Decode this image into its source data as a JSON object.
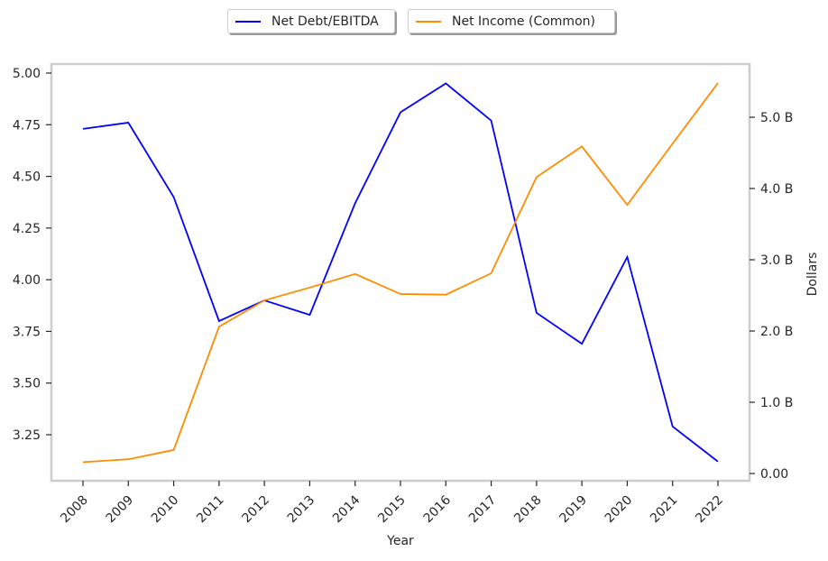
{
  "chart_data": {
    "type": "line",
    "x": [
      2008,
      2009,
      2010,
      2011,
      2012,
      2013,
      2014,
      2015,
      2016,
      2017,
      2018,
      2019,
      2020,
      2021,
      2022
    ],
    "xlabel": "Year",
    "series": [
      {
        "name": "Net Debt/EBITDA",
        "axis": "left",
        "color": "#0000ff",
        "values": [
          4.73,
          4.76,
          4.4,
          3.8,
          3.9,
          3.83,
          4.37,
          4.81,
          4.95,
          4.77,
          3.84,
          3.69,
          4.11,
          3.29,
          3.12
        ]
      },
      {
        "name": "Net Income (Common)",
        "axis": "right",
        "color": "#ff8c00",
        "values": [
          0.16,
          0.2,
          0.33,
          2.06,
          2.43,
          2.61,
          2.8,
          2.52,
          2.51,
          2.81,
          4.16,
          4.59,
          3.77,
          4.63,
          5.48
        ]
      }
    ],
    "left_axis": {
      "label": "",
      "ticks": [
        "3.25",
        "3.50",
        "3.75",
        "4.00",
        "4.25",
        "4.50",
        "4.75",
        "5.00"
      ],
      "tick_values": [
        3.25,
        3.5,
        3.75,
        4.0,
        4.25,
        4.5,
        4.75,
        5.0
      ]
    },
    "right_axis": {
      "label": "Dollars",
      "unit": "B",
      "ticks": [
        "0.00",
        "1.0 B",
        "2.0 B",
        "3.0 B",
        "4.0 B",
        "5.0 B"
      ],
      "tick_values": [
        0,
        1,
        2,
        3,
        4,
        5
      ]
    },
    "grid": false,
    "legend": "top-center"
  }
}
